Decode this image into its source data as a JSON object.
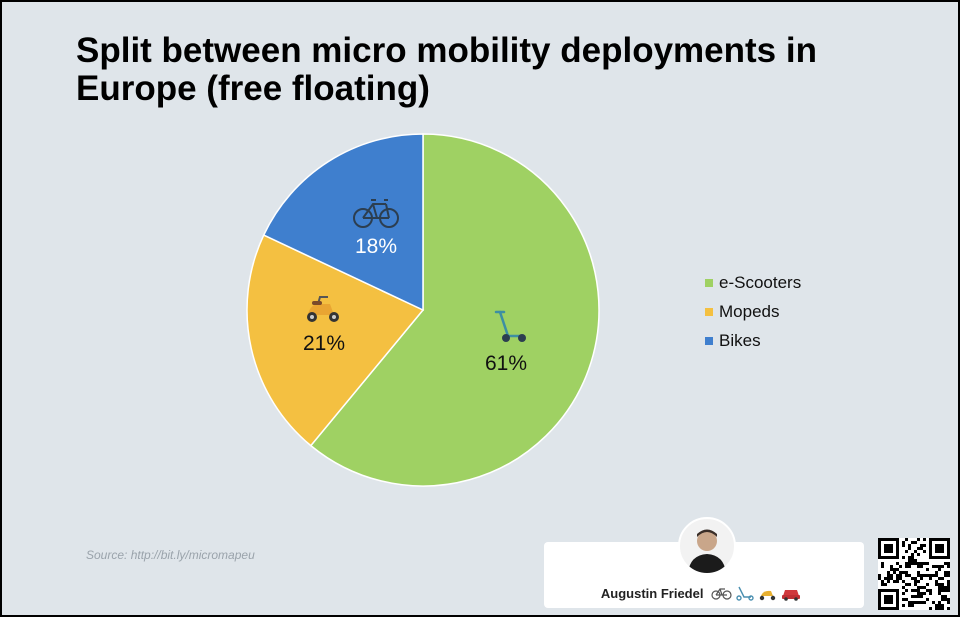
{
  "title": "Split between micro mobility deployments in Europe (free floating)",
  "chart_data": {
    "type": "pie",
    "title": "Split between micro mobility deployments in Europe (free floating)",
    "slices": [
      {
        "name": "e-Scooters",
        "value": 61,
        "label": "61%",
        "color": "#9fd163",
        "icon": "scooter-icon"
      },
      {
        "name": "Mopeds",
        "value": 21,
        "label": "21%",
        "color": "#f4c041",
        "icon": "moped-icon"
      },
      {
        "name": "Bikes",
        "value": 18,
        "label": "18%",
        "color": "#3f7fce",
        "icon": "bicycle-icon"
      }
    ],
    "legend_position": "right",
    "start": "top, clockwise"
  },
  "legend": [
    {
      "label": "e-Scooters",
      "color": "#9fd163"
    },
    {
      "label": "Mopeds",
      "color": "#f4c041"
    },
    {
      "label": "Bikes",
      "color": "#3f7fce"
    }
  ],
  "source": "Source: http://bit.ly/micromapeu",
  "author": {
    "name": "Augustin Friedel",
    "icons": [
      "bicycle-icon",
      "scooter-icon",
      "moped-icon",
      "car-icon"
    ]
  }
}
